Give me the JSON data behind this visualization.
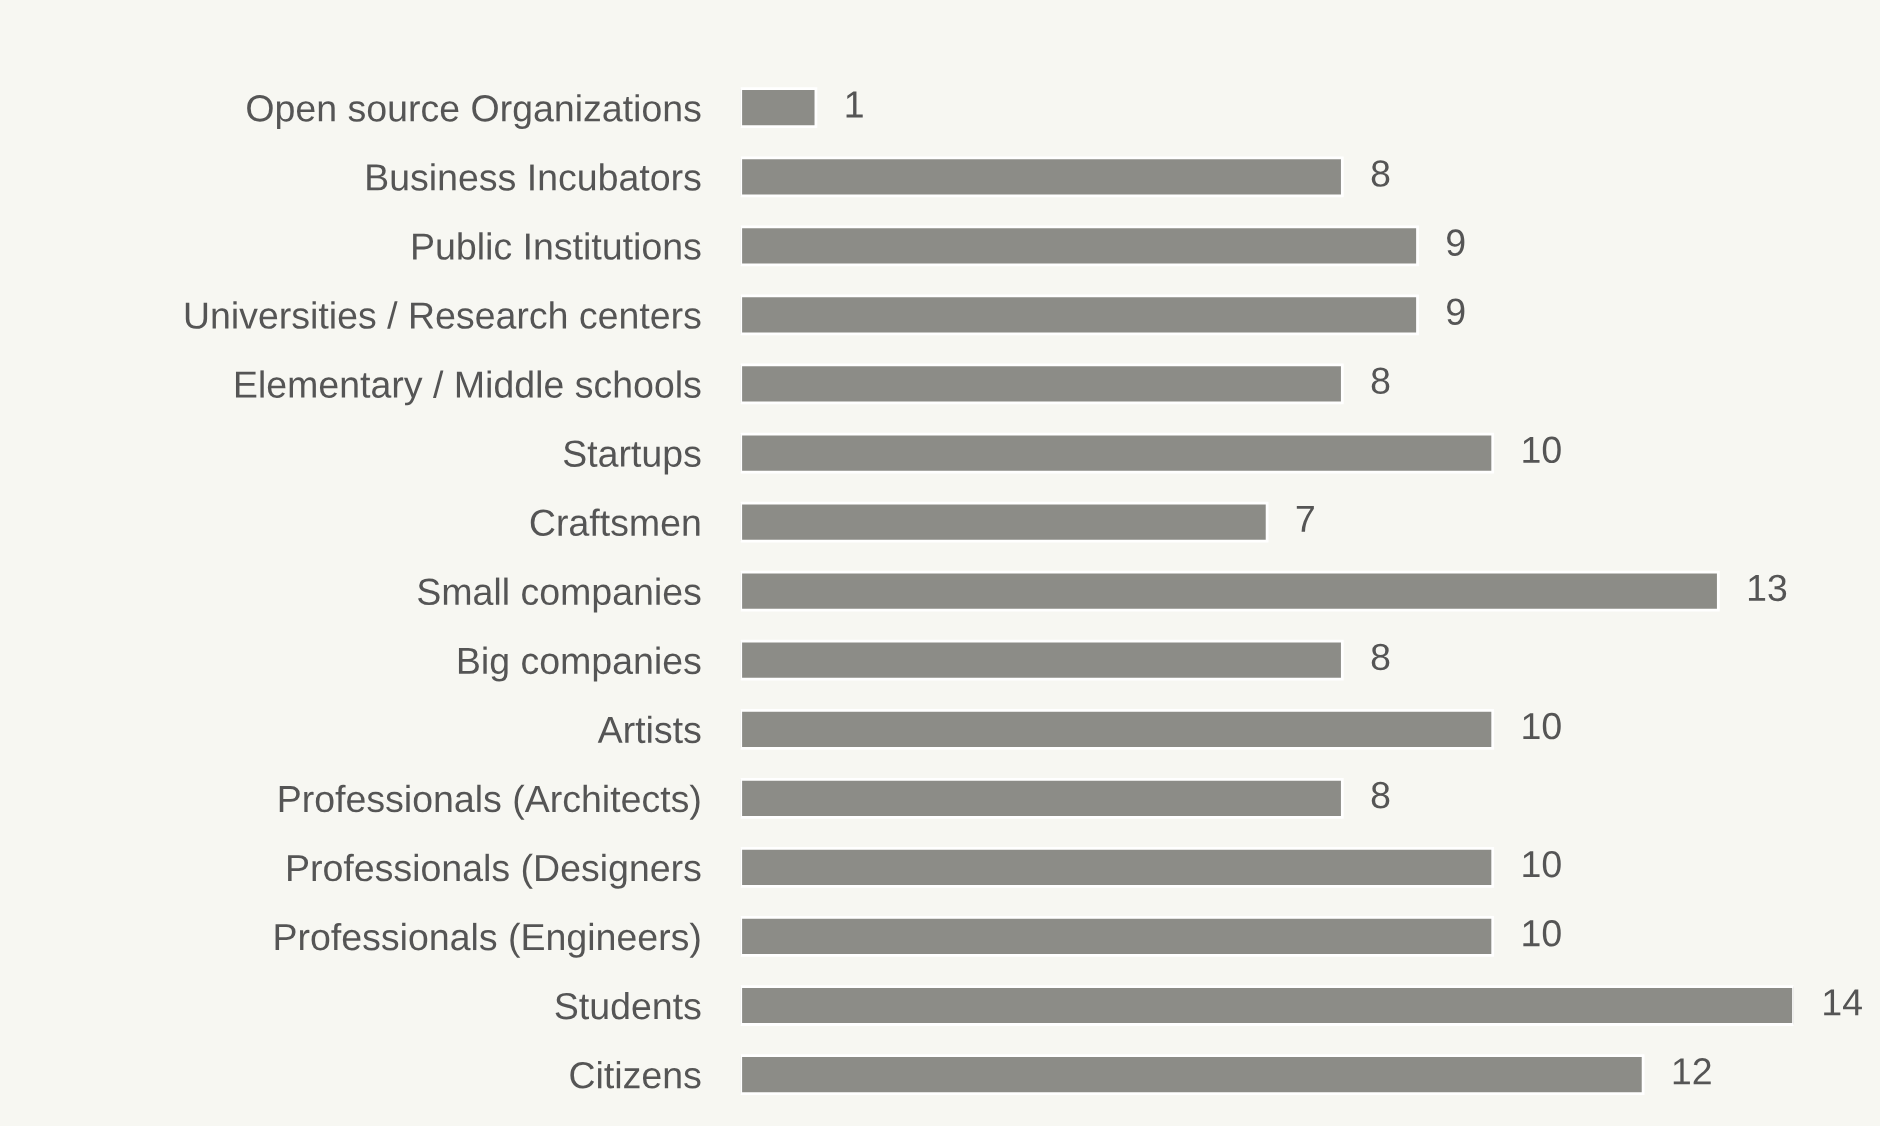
{
  "chart_data": {
    "type": "bar",
    "orientation": "horizontal",
    "data_labels": true,
    "grid": false,
    "legend": false,
    "categories": [
      "Open source Organizations",
      "Business Incubators",
      "Public Institutions",
      "Universities / Research centers",
      "Elementary / Middle schools",
      "Startups",
      "Craftsmen",
      "Small companies",
      "Big companies",
      "Artists",
      "Professionals (Architects)",
      "Professionals (Designers",
      "Professionals (Engineers)",
      "Students",
      "Citizens"
    ],
    "values": [
      1,
      8,
      9,
      9,
      8,
      10,
      7,
      13,
      8,
      10,
      8,
      10,
      10,
      14,
      12
    ],
    "color": "#8c8c87"
  }
}
